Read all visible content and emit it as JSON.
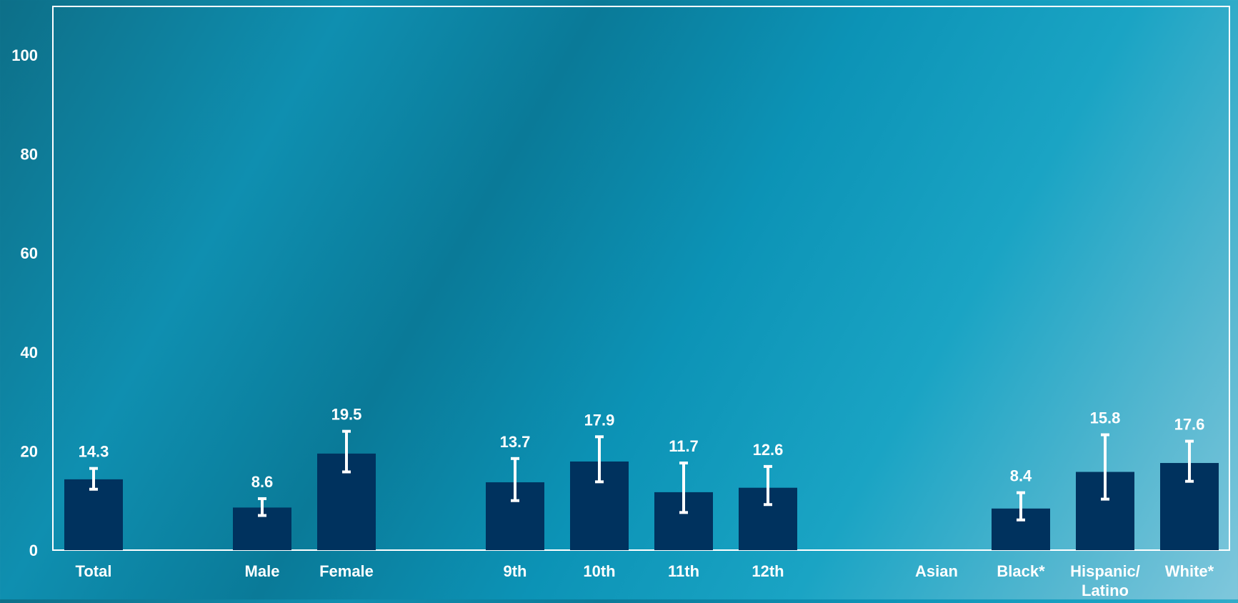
{
  "chart_data": {
    "type": "bar",
    "categories": [
      "Total",
      "",
      "Male",
      "Female",
      "",
      "9th",
      "10th",
      "11th",
      "12th",
      "",
      "Asian",
      "Black*",
      "Hispanic/ Latino",
      "White*"
    ],
    "category_lines": [
      [
        "Total"
      ],
      [],
      [
        "Male"
      ],
      [
        "Female"
      ],
      [],
      [
        "9th"
      ],
      [
        "10th"
      ],
      [
        "11th"
      ],
      [
        "12th"
      ],
      [],
      [
        "Asian"
      ],
      [
        "Black*"
      ],
      [
        "Hispanic/",
        "Latino"
      ],
      [
        "White*"
      ]
    ],
    "values": [
      14.3,
      null,
      8.6,
      19.5,
      null,
      13.7,
      17.9,
      11.7,
      12.6,
      null,
      null,
      8.4,
      15.8,
      17.6
    ],
    "value_labels": [
      "14.3",
      "",
      "8.6",
      "19.5",
      "",
      "13.7",
      "17.9",
      "11.7",
      "12.6",
      "",
      "",
      "8.4",
      "15.8",
      "17.6"
    ],
    "error_low": [
      12.3,
      null,
      7.0,
      15.8,
      null,
      10.0,
      13.8,
      7.6,
      9.2,
      null,
      null,
      6.1,
      10.3,
      13.9
    ],
    "error_high": [
      16.5,
      null,
      10.4,
      24.0,
      null,
      18.5,
      22.9,
      17.6,
      16.9,
      null,
      null,
      11.6,
      23.3,
      22.0
    ],
    "yticks": [
      0,
      20,
      40,
      60,
      80,
      100
    ],
    "ylim": [
      0,
      110
    ],
    "grid": false,
    "title": "",
    "xlabel": "",
    "ylabel": ""
  },
  "colors": {
    "bar": "#00325e",
    "error_bar": "#ffffff",
    "axis": "#ffffff",
    "text": "#ffffff"
  }
}
